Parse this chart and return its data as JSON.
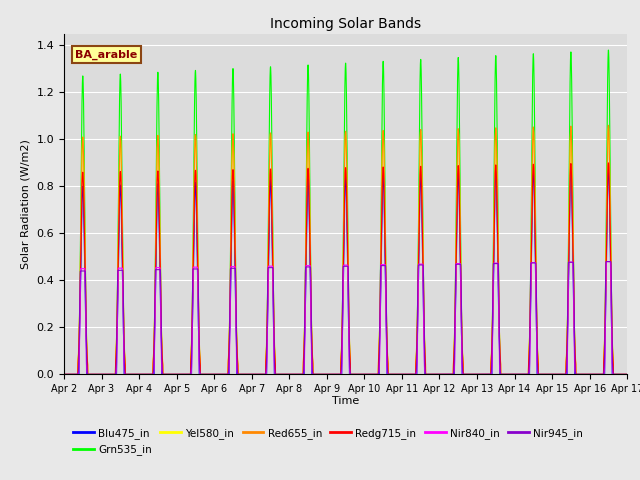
{
  "title": "Incoming Solar Bands",
  "xlabel": "Time",
  "ylabel": "Solar Radiation (W/m2)",
  "ylim": [
    0.0,
    1.45
  ],
  "yticks": [
    0.0,
    0.2,
    0.4,
    0.6,
    0.8,
    1.0,
    1.2,
    1.4
  ],
  "annotation": "BA_arable",
  "series": [
    {
      "label": "Blu475_in",
      "color": "#0000FF"
    },
    {
      "label": "Grn535_in",
      "color": "#00FF00"
    },
    {
      "label": "Yel580_in",
      "color": "#FFFF00"
    },
    {
      "label": "Red655_in",
      "color": "#FF8800"
    },
    {
      "label": "Redg715_in",
      "color": "#FF0000"
    },
    {
      "label": "Nir840_in",
      "color": "#FF00FF"
    },
    {
      "label": "Nir945_in",
      "color": "#8800CC"
    }
  ],
  "bg_color": "#E8E8E8",
  "n_days": 15,
  "start_day": 2,
  "points_per_day": 288
}
